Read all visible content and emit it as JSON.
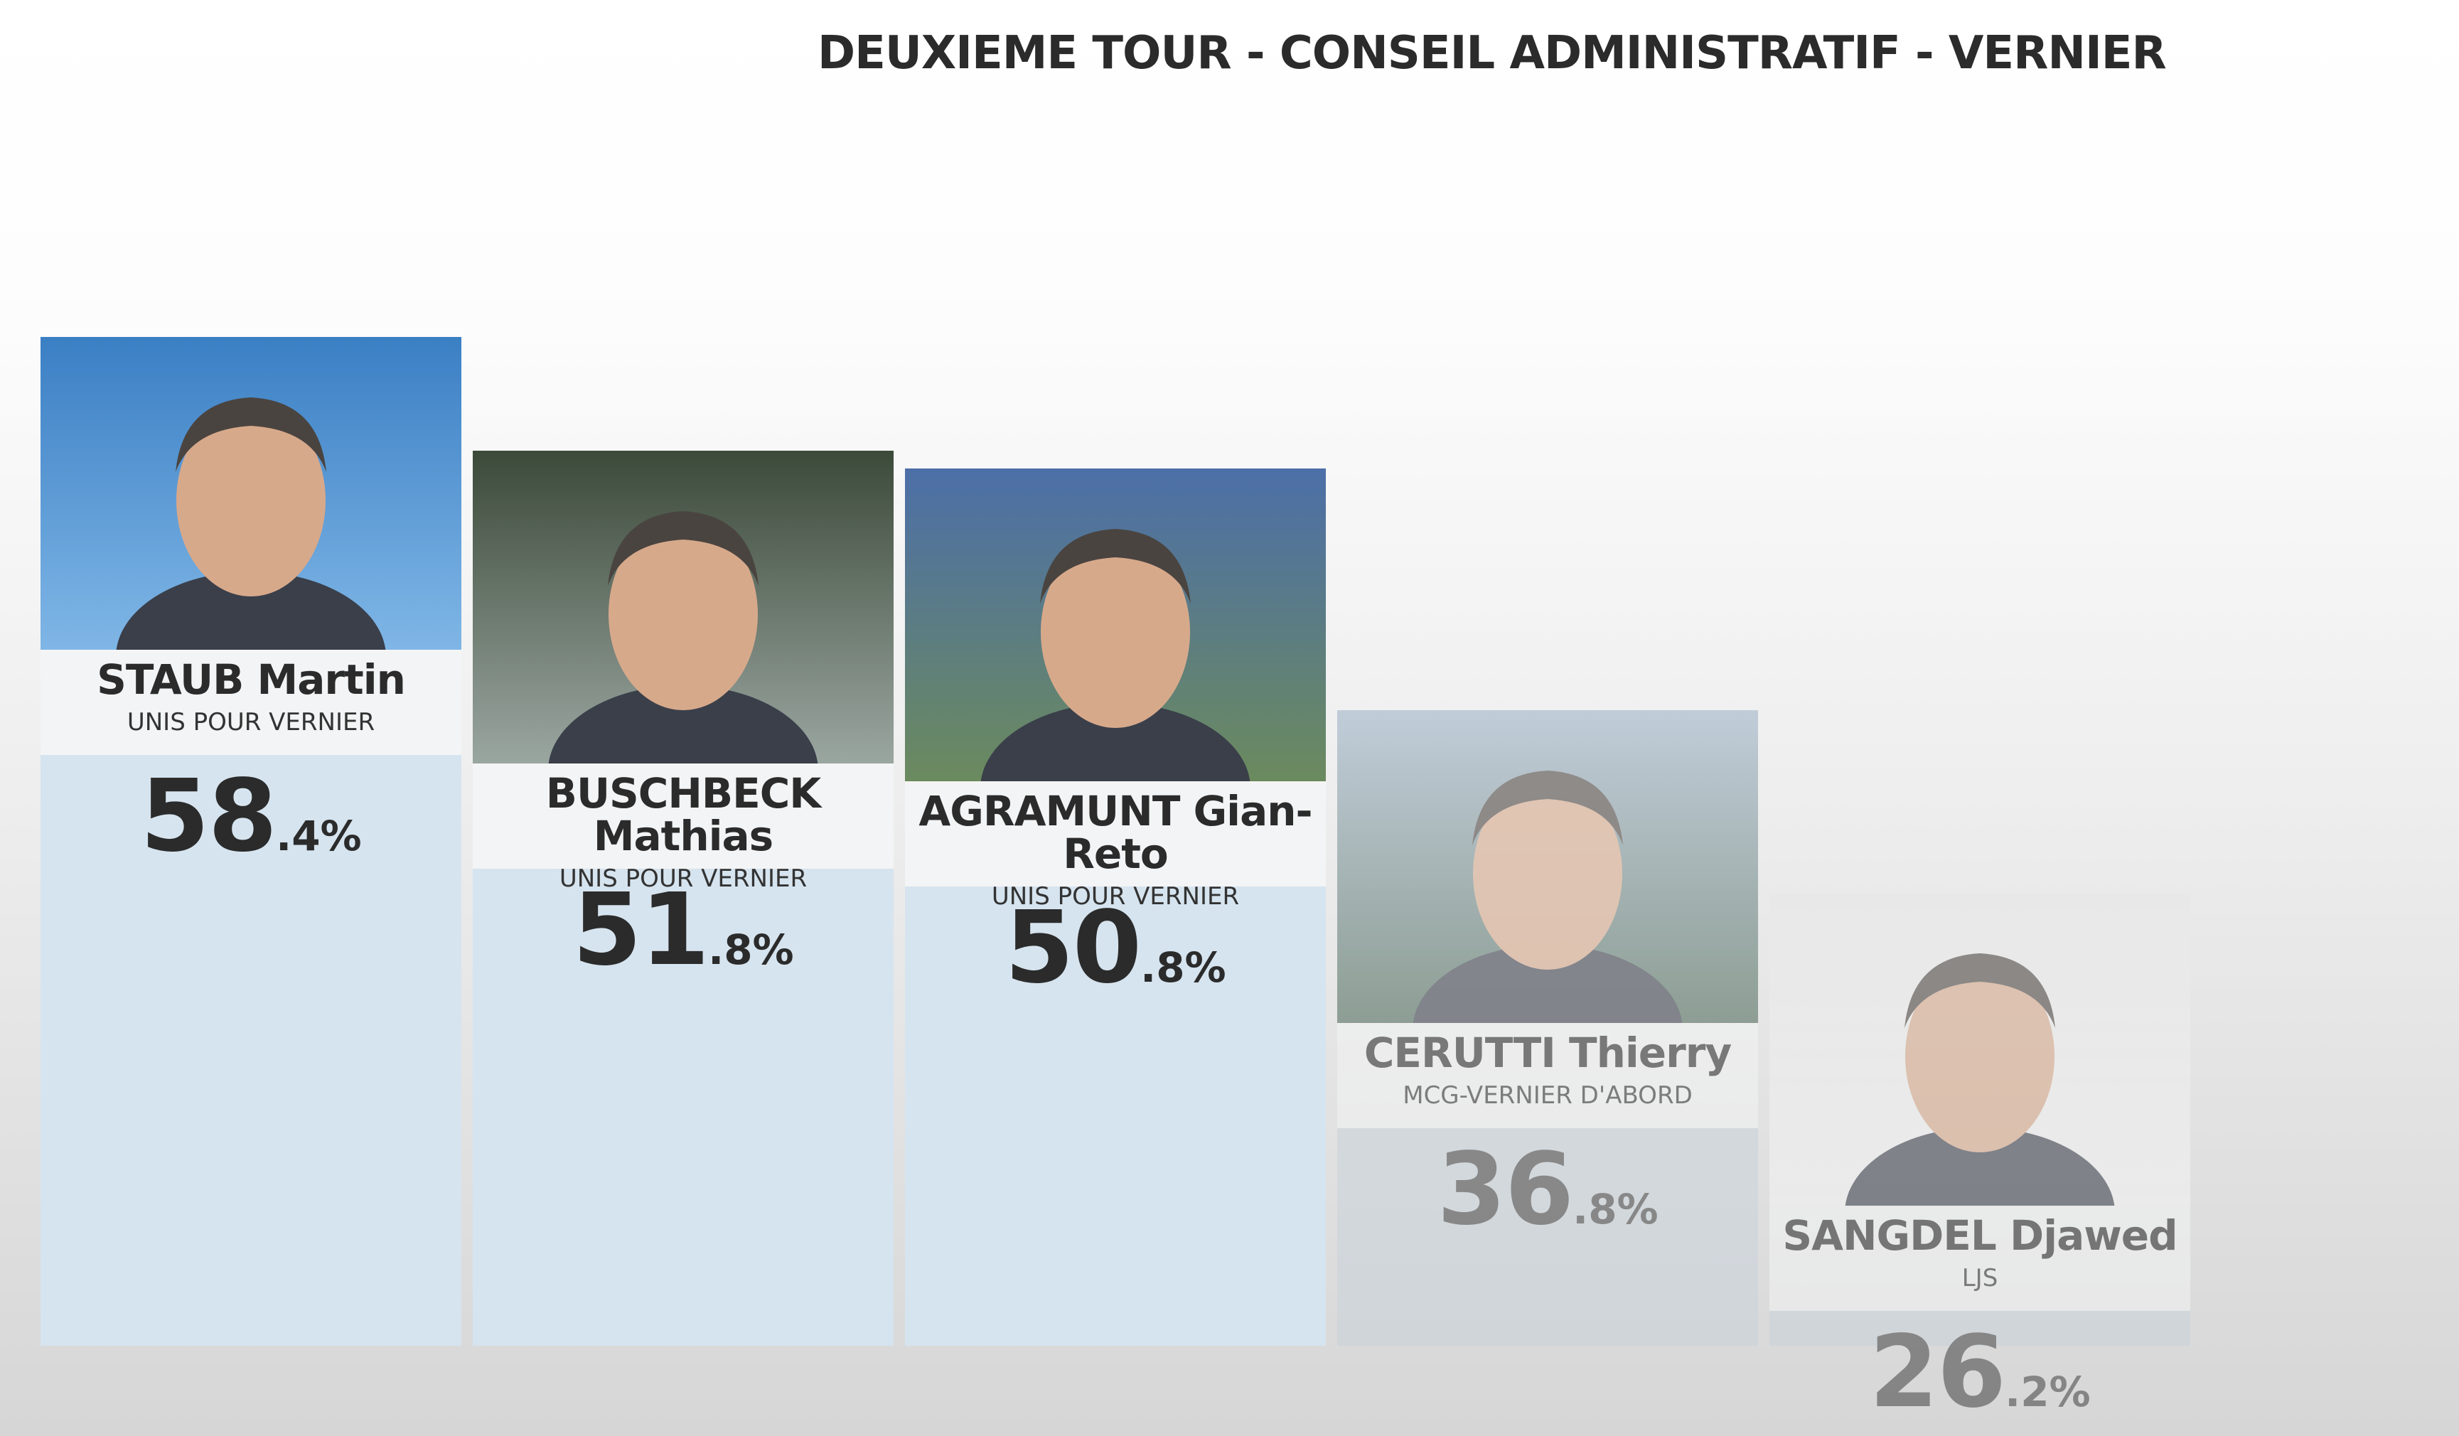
{
  "title": "DEUXIEME TOUR - CONSEIL ADMINISTRATIF - VERNIER",
  "chart_data": {
    "type": "bar",
    "title": "DEUXIEME TOUR - CONSEIL ADMINISTRATIF - VERNIER",
    "categories": [
      "STAUB Martin",
      "BUSCHBECK Mathias",
      "AGRAMUNT Gian-Reto",
      "CERUTTI Thierry",
      "SANGDEL Djawed"
    ],
    "values": [
      58.4,
      51.8,
      50.8,
      36.8,
      26.2
    ],
    "unit": "%",
    "ylim": [
      0,
      100
    ],
    "candidates": [
      {
        "name": "STAUB Martin",
        "party": "UNIS POUR VERNIER",
        "int": "58",
        "dec": ".4%",
        "value": 58.4,
        "faded": false
      },
      {
        "name": "BUSCHBECK Mathias",
        "party": "UNIS POUR VERNIER",
        "int": "51",
        "dec": ".8%",
        "value": 51.8,
        "faded": false
      },
      {
        "name": "AGRAMUNT Gian-Reto",
        "party": "UNIS POUR VERNIER",
        "int": "50",
        "dec": ".8%",
        "value": 50.8,
        "faded": false
      },
      {
        "name": "CERUTTI Thierry",
        "party": "MCG-VERNIER D'ABORD",
        "int": "36",
        "dec": ".8%",
        "value": 36.8,
        "faded": true
      },
      {
        "name": "SANGDEL Djawed",
        "party": "LJS",
        "int": "26",
        "dec": ".2%",
        "value": 26.2,
        "faded": true
      }
    ],
    "colors": {
      "bar": "#d6e4ef",
      "bar_faded": "#c9d3da",
      "text": "#2b2b2b"
    }
  }
}
